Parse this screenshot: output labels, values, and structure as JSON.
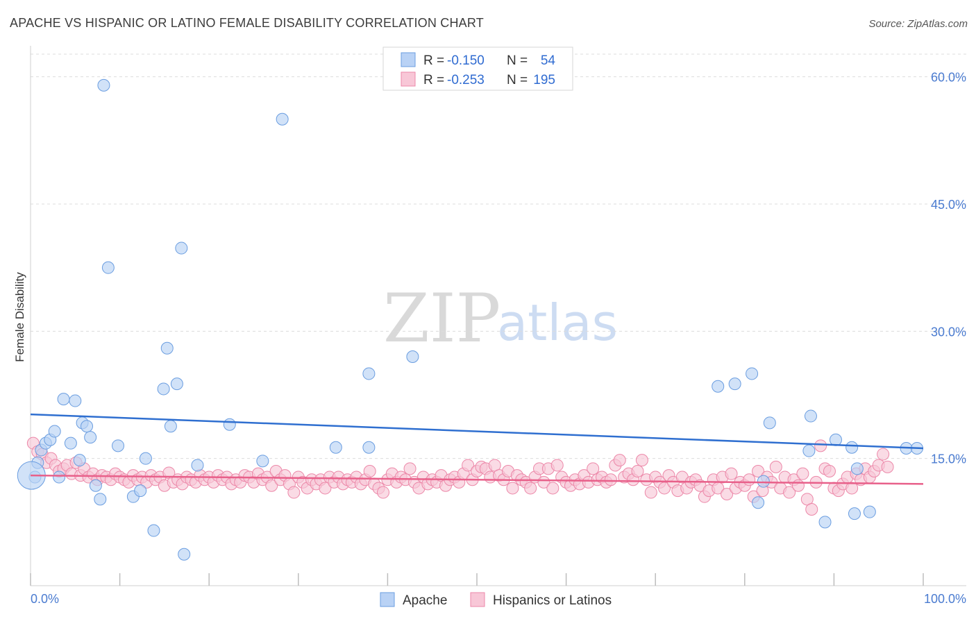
{
  "chart_data": {
    "type": "scatter",
    "title": "APACHE VS HISPANIC OR LATINO FEMALE DISABILITY CORRELATION CHART",
    "source": "Source: ZipAtlas.com",
    "xlabel": "",
    "ylabel": "Female Disability",
    "xlim": [
      0,
      100
    ],
    "ylim": [
      0,
      63
    ],
    "x_tick_labels": [
      "0.0%",
      "100.0%"
    ],
    "y_ticks": [
      {
        "value": 15,
        "label": "15.0%"
      },
      {
        "value": 30,
        "label": "30.0%"
      },
      {
        "value": 45,
        "label": "45.0%"
      },
      {
        "value": 60,
        "label": "60.0%"
      }
    ],
    "legend": {
      "rows": [
        {
          "r_label": "R =",
          "r_value": "-0.150",
          "n_label": "N =",
          "n_value": "54"
        },
        {
          "r_label": "R =",
          "r_value": "-0.253",
          "n_label": "N =",
          "n_value": "195"
        }
      ]
    },
    "watermark": {
      "part1": "ZIP",
      "part2": "atlas"
    },
    "series": [
      {
        "name": "Apache",
        "color": "#6a9de0",
        "fill": "#b9d2f5",
        "trend": {
          "x0": 0,
          "y0": 20.2,
          "x1": 100,
          "y1": 16.2
        },
        "points": [
          [
            0.5,
            12.8
          ],
          [
            0.8,
            14.5
          ],
          [
            1.2,
            16.0
          ],
          [
            1.7,
            16.8
          ],
          [
            2.2,
            17.2
          ],
          [
            2.7,
            18.2
          ],
          [
            3.2,
            12.8
          ],
          [
            3.7,
            22.0
          ],
          [
            4.5,
            16.8
          ],
          [
            5.0,
            21.8
          ],
          [
            5.5,
            14.8
          ],
          [
            5.8,
            19.2
          ],
          [
            6.3,
            18.8
          ],
          [
            6.7,
            17.5
          ],
          [
            7.3,
            11.8
          ],
          [
            7.8,
            10.2
          ],
          [
            8.2,
            59.0
          ],
          [
            8.7,
            37.5
          ],
          [
            9.8,
            16.5
          ],
          [
            11.5,
            10.5
          ],
          [
            12.3,
            11.2
          ],
          [
            12.9,
            15.0
          ],
          [
            13.8,
            6.5
          ],
          [
            14.9,
            23.2
          ],
          [
            15.3,
            28.0
          ],
          [
            15.7,
            18.8
          ],
          [
            16.4,
            23.8
          ],
          [
            17.2,
            3.7
          ],
          [
            16.9,
            39.8
          ],
          [
            18.7,
            14.2
          ],
          [
            22.3,
            19.0
          ],
          [
            26.0,
            14.7
          ],
          [
            28.2,
            55.0
          ],
          [
            34.2,
            16.3
          ],
          [
            37.9,
            25.0
          ],
          [
            37.9,
            16.3
          ],
          [
            42.8,
            27.0
          ],
          [
            77.0,
            23.5
          ],
          [
            78.9,
            23.8
          ],
          [
            80.8,
            25.0
          ],
          [
            81.5,
            9.8
          ],
          [
            82.1,
            12.3
          ],
          [
            82.8,
            19.2
          ],
          [
            87.4,
            20.0
          ],
          [
            89.0,
            7.5
          ],
          [
            87.2,
            15.9
          ],
          [
            90.2,
            17.2
          ],
          [
            92.0,
            16.3
          ],
          [
            92.6,
            13.8
          ],
          [
            92.3,
            8.5
          ],
          [
            94.0,
            8.7
          ],
          [
            98.1,
            16.2
          ],
          [
            99.3,
            16.2
          ],
          [
            0.1,
            13.0
          ]
        ]
      },
      {
        "name": "Hispanics or Latinos",
        "color": "#ec87a8",
        "fill": "#f8c7d7",
        "trend": {
          "x0": 0,
          "y0": 13.0,
          "x1": 100,
          "y1": 12.0
        },
        "points": [
          [
            0.3,
            16.8
          ],
          [
            0.8,
            15.8
          ],
          [
            1.3,
            15.5
          ],
          [
            1.8,
            14.5
          ],
          [
            2.3,
            15.0
          ],
          [
            2.8,
            14.2
          ],
          [
            3.2,
            13.5
          ],
          [
            3.7,
            13.8
          ],
          [
            4.1,
            14.2
          ],
          [
            4.6,
            13.2
          ],
          [
            5.1,
            14.5
          ],
          [
            5.6,
            13.0
          ],
          [
            6.0,
            13.8
          ],
          [
            6.5,
            12.8
          ],
          [
            7.0,
            13.2
          ],
          [
            7.5,
            12.5
          ],
          [
            8.0,
            13.0
          ],
          [
            8.5,
            12.8
          ],
          [
            9.0,
            12.5
          ],
          [
            9.5,
            13.2
          ],
          [
            10.0,
            12.8
          ],
          [
            10.5,
            12.5
          ],
          [
            11.0,
            12.2
          ],
          [
            11.5,
            13.0
          ],
          [
            12.0,
            12.5
          ],
          [
            12.5,
            12.8
          ],
          [
            13.0,
            12.2
          ],
          [
            13.5,
            13.0
          ],
          [
            14.0,
            12.5
          ],
          [
            14.5,
            12.8
          ],
          [
            15.0,
            11.8
          ],
          [
            15.5,
            13.3
          ],
          [
            16.0,
            12.2
          ],
          [
            16.5,
            12.5
          ],
          [
            17.0,
            12.0
          ],
          [
            17.5,
            12.8
          ],
          [
            18.0,
            12.5
          ],
          [
            18.5,
            12.2
          ],
          [
            19.0,
            13.0
          ],
          [
            19.5,
            12.5
          ],
          [
            20.0,
            12.8
          ],
          [
            20.5,
            12.2
          ],
          [
            21.0,
            13.0
          ],
          [
            21.5,
            12.5
          ],
          [
            22.0,
            12.8
          ],
          [
            22.5,
            12.0
          ],
          [
            23.0,
            12.5
          ],
          [
            23.5,
            12.2
          ],
          [
            24.0,
            13.0
          ],
          [
            24.5,
            12.8
          ],
          [
            25.0,
            12.2
          ],
          [
            25.5,
            13.2
          ],
          [
            26.0,
            12.5
          ],
          [
            26.5,
            12.8
          ],
          [
            27.0,
            11.8
          ],
          [
            27.5,
            13.5
          ],
          [
            28.0,
            12.5
          ],
          [
            28.5,
            13.0
          ],
          [
            29.0,
            12.0
          ],
          [
            29.5,
            11.0
          ],
          [
            30.0,
            12.8
          ],
          [
            30.5,
            12.2
          ],
          [
            31.0,
            11.5
          ],
          [
            31.5,
            12.5
          ],
          [
            32.0,
            12.0
          ],
          [
            32.5,
            12.5
          ],
          [
            33.0,
            11.5
          ],
          [
            33.5,
            12.8
          ],
          [
            34.0,
            12.2
          ],
          [
            34.5,
            12.8
          ],
          [
            35.0,
            12.0
          ],
          [
            35.5,
            12.5
          ],
          [
            36.0,
            12.2
          ],
          [
            36.5,
            12.8
          ],
          [
            37.0,
            12.0
          ],
          [
            37.5,
            12.5
          ],
          [
            38.0,
            13.5
          ],
          [
            38.5,
            12.0
          ],
          [
            39.0,
            11.5
          ],
          [
            39.5,
            11.0
          ],
          [
            40.0,
            12.5
          ],
          [
            40.5,
            13.2
          ],
          [
            41.0,
            12.2
          ],
          [
            41.5,
            12.8
          ],
          [
            42.0,
            12.5
          ],
          [
            42.5,
            13.8
          ],
          [
            43.0,
            12.2
          ],
          [
            43.5,
            11.5
          ],
          [
            44.0,
            12.8
          ],
          [
            44.5,
            12.0
          ],
          [
            45.0,
            12.5
          ],
          [
            45.5,
            12.2
          ],
          [
            46.0,
            13.0
          ],
          [
            46.5,
            11.8
          ],
          [
            47.0,
            12.5
          ],
          [
            47.5,
            12.8
          ],
          [
            48.0,
            12.2
          ],
          [
            48.5,
            13.2
          ],
          [
            49.0,
            14.2
          ],
          [
            49.5,
            12.5
          ],
          [
            50.0,
            13.5
          ],
          [
            50.5,
            14.0
          ],
          [
            51.0,
            13.8
          ],
          [
            51.5,
            12.8
          ],
          [
            52.0,
            14.2
          ],
          [
            52.5,
            13.0
          ],
          [
            53.0,
            12.5
          ],
          [
            53.5,
            13.5
          ],
          [
            54.0,
            11.5
          ],
          [
            54.5,
            13.0
          ],
          [
            55.0,
            12.5
          ],
          [
            55.5,
            12.2
          ],
          [
            56.0,
            11.5
          ],
          [
            56.5,
            12.8
          ],
          [
            57.0,
            13.8
          ],
          [
            57.5,
            12.2
          ],
          [
            58.0,
            13.8
          ],
          [
            58.5,
            11.5
          ],
          [
            59.0,
            14.2
          ],
          [
            59.5,
            12.8
          ],
          [
            60.0,
            12.2
          ],
          [
            60.5,
            11.8
          ],
          [
            61.0,
            12.5
          ],
          [
            61.5,
            12.0
          ],
          [
            62.0,
            13.0
          ],
          [
            62.5,
            12.2
          ],
          [
            63.0,
            13.8
          ],
          [
            63.5,
            12.5
          ],
          [
            64.0,
            12.8
          ],
          [
            64.5,
            12.2
          ],
          [
            65.0,
            12.5
          ],
          [
            65.5,
            14.2
          ],
          [
            66.0,
            14.8
          ],
          [
            66.5,
            12.8
          ],
          [
            67.0,
            13.2
          ],
          [
            67.5,
            12.5
          ],
          [
            68.0,
            13.5
          ],
          [
            68.5,
            14.8
          ],
          [
            69.0,
            12.5
          ],
          [
            69.5,
            11.0
          ],
          [
            70.0,
            12.8
          ],
          [
            70.5,
            12.2
          ],
          [
            71.0,
            11.5
          ],
          [
            71.5,
            13.0
          ],
          [
            72.0,
            12.2
          ],
          [
            72.5,
            11.2
          ],
          [
            73.0,
            12.8
          ],
          [
            73.5,
            11.5
          ],
          [
            74.0,
            12.2
          ],
          [
            74.5,
            12.5
          ],
          [
            75.0,
            11.8
          ],
          [
            75.5,
            10.5
          ],
          [
            76.0,
            11.2
          ],
          [
            76.5,
            12.5
          ],
          [
            77.0,
            11.5
          ],
          [
            77.5,
            12.8
          ],
          [
            78.0,
            10.8
          ],
          [
            78.5,
            13.2
          ],
          [
            79.0,
            11.5
          ],
          [
            79.5,
            12.2
          ],
          [
            80.0,
            11.8
          ],
          [
            80.5,
            12.5
          ],
          [
            81.0,
            10.5
          ],
          [
            81.5,
            13.5
          ],
          [
            82.0,
            11.2
          ],
          [
            82.5,
            12.8
          ],
          [
            83.0,
            12.2
          ],
          [
            83.5,
            14.0
          ],
          [
            84.0,
            11.5
          ],
          [
            84.5,
            12.8
          ],
          [
            85.0,
            11.0
          ],
          [
            85.5,
            12.5
          ],
          [
            86.0,
            11.8
          ],
          [
            86.5,
            13.2
          ],
          [
            87.0,
            10.2
          ],
          [
            87.5,
            9.0
          ],
          [
            88.0,
            12.2
          ],
          [
            88.5,
            16.5
          ],
          [
            89.0,
            13.8
          ],
          [
            89.5,
            13.5
          ],
          [
            90.0,
            11.5
          ],
          [
            90.5,
            11.2
          ],
          [
            91.0,
            12.0
          ],
          [
            91.5,
            12.8
          ],
          [
            92.0,
            11.5
          ],
          [
            92.5,
            13.2
          ],
          [
            93.0,
            12.5
          ],
          [
            93.5,
            13.8
          ],
          [
            94.0,
            12.8
          ],
          [
            94.5,
            13.5
          ],
          [
            95.0,
            14.2
          ],
          [
            95.5,
            15.5
          ],
          [
            96.0,
            14.0
          ]
        ]
      }
    ]
  },
  "legend_bottom": [
    "Apache",
    "Hispanics or Latinos"
  ]
}
